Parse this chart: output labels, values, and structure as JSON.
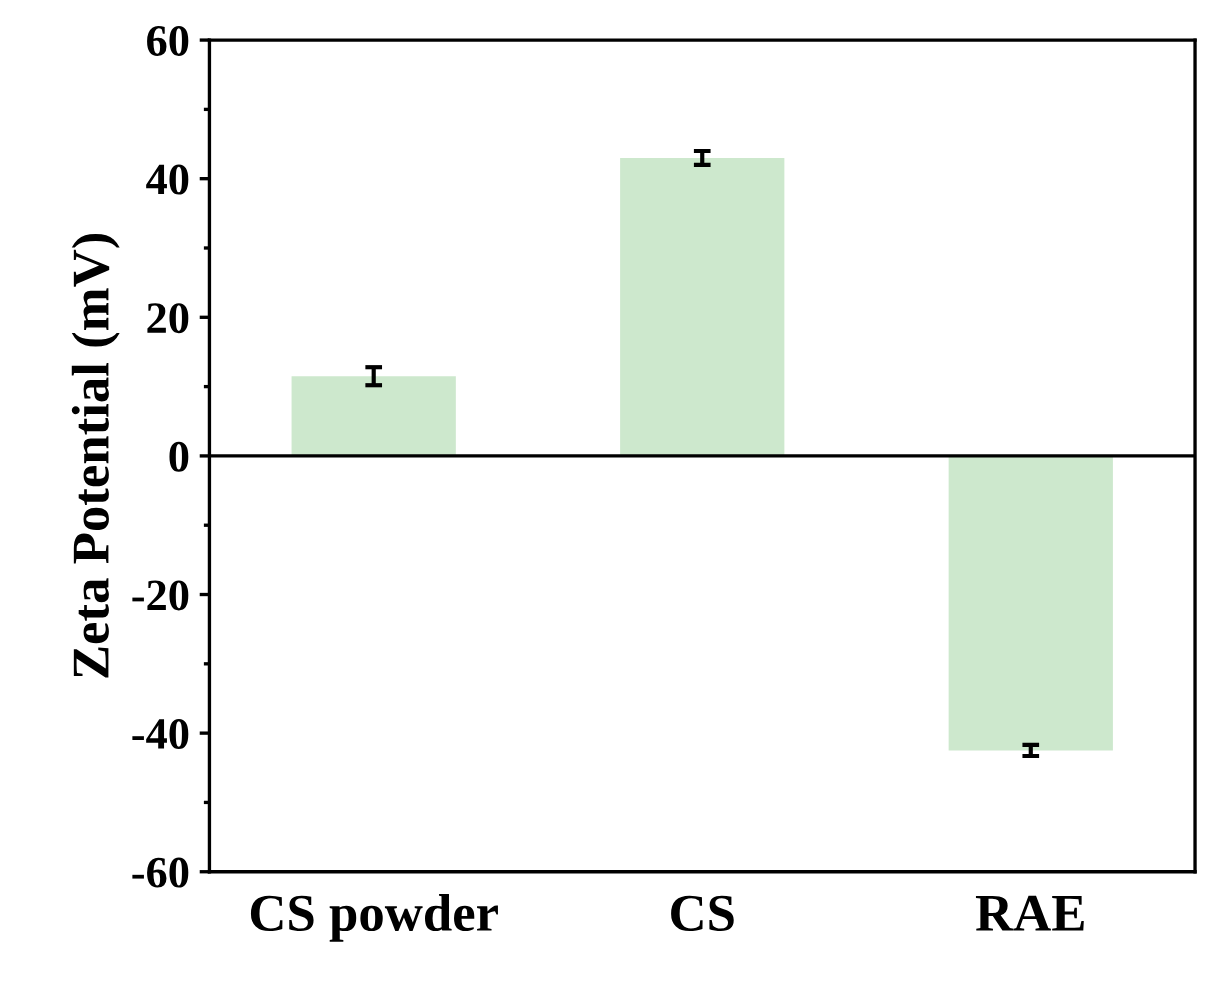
{
  "chart_data": {
    "type": "bar",
    "ylabel": "Zeta Potential (mV)",
    "categories": [
      "CS powder",
      "CS",
      "RAE"
    ],
    "values": [
      11.5,
      43,
      -42.5
    ],
    "errors": [
      1.3,
      1,
      0.8
    ],
    "color": "#cde8cd",
    "ylim": [
      -60,
      60
    ],
    "yticks": [
      -60,
      -40,
      -20,
      0,
      20,
      40,
      60
    ],
    "ref_lines": [
      {
        "axis": "y",
        "value": 0,
        "color": "#000000"
      }
    ],
    "grid": false
  }
}
